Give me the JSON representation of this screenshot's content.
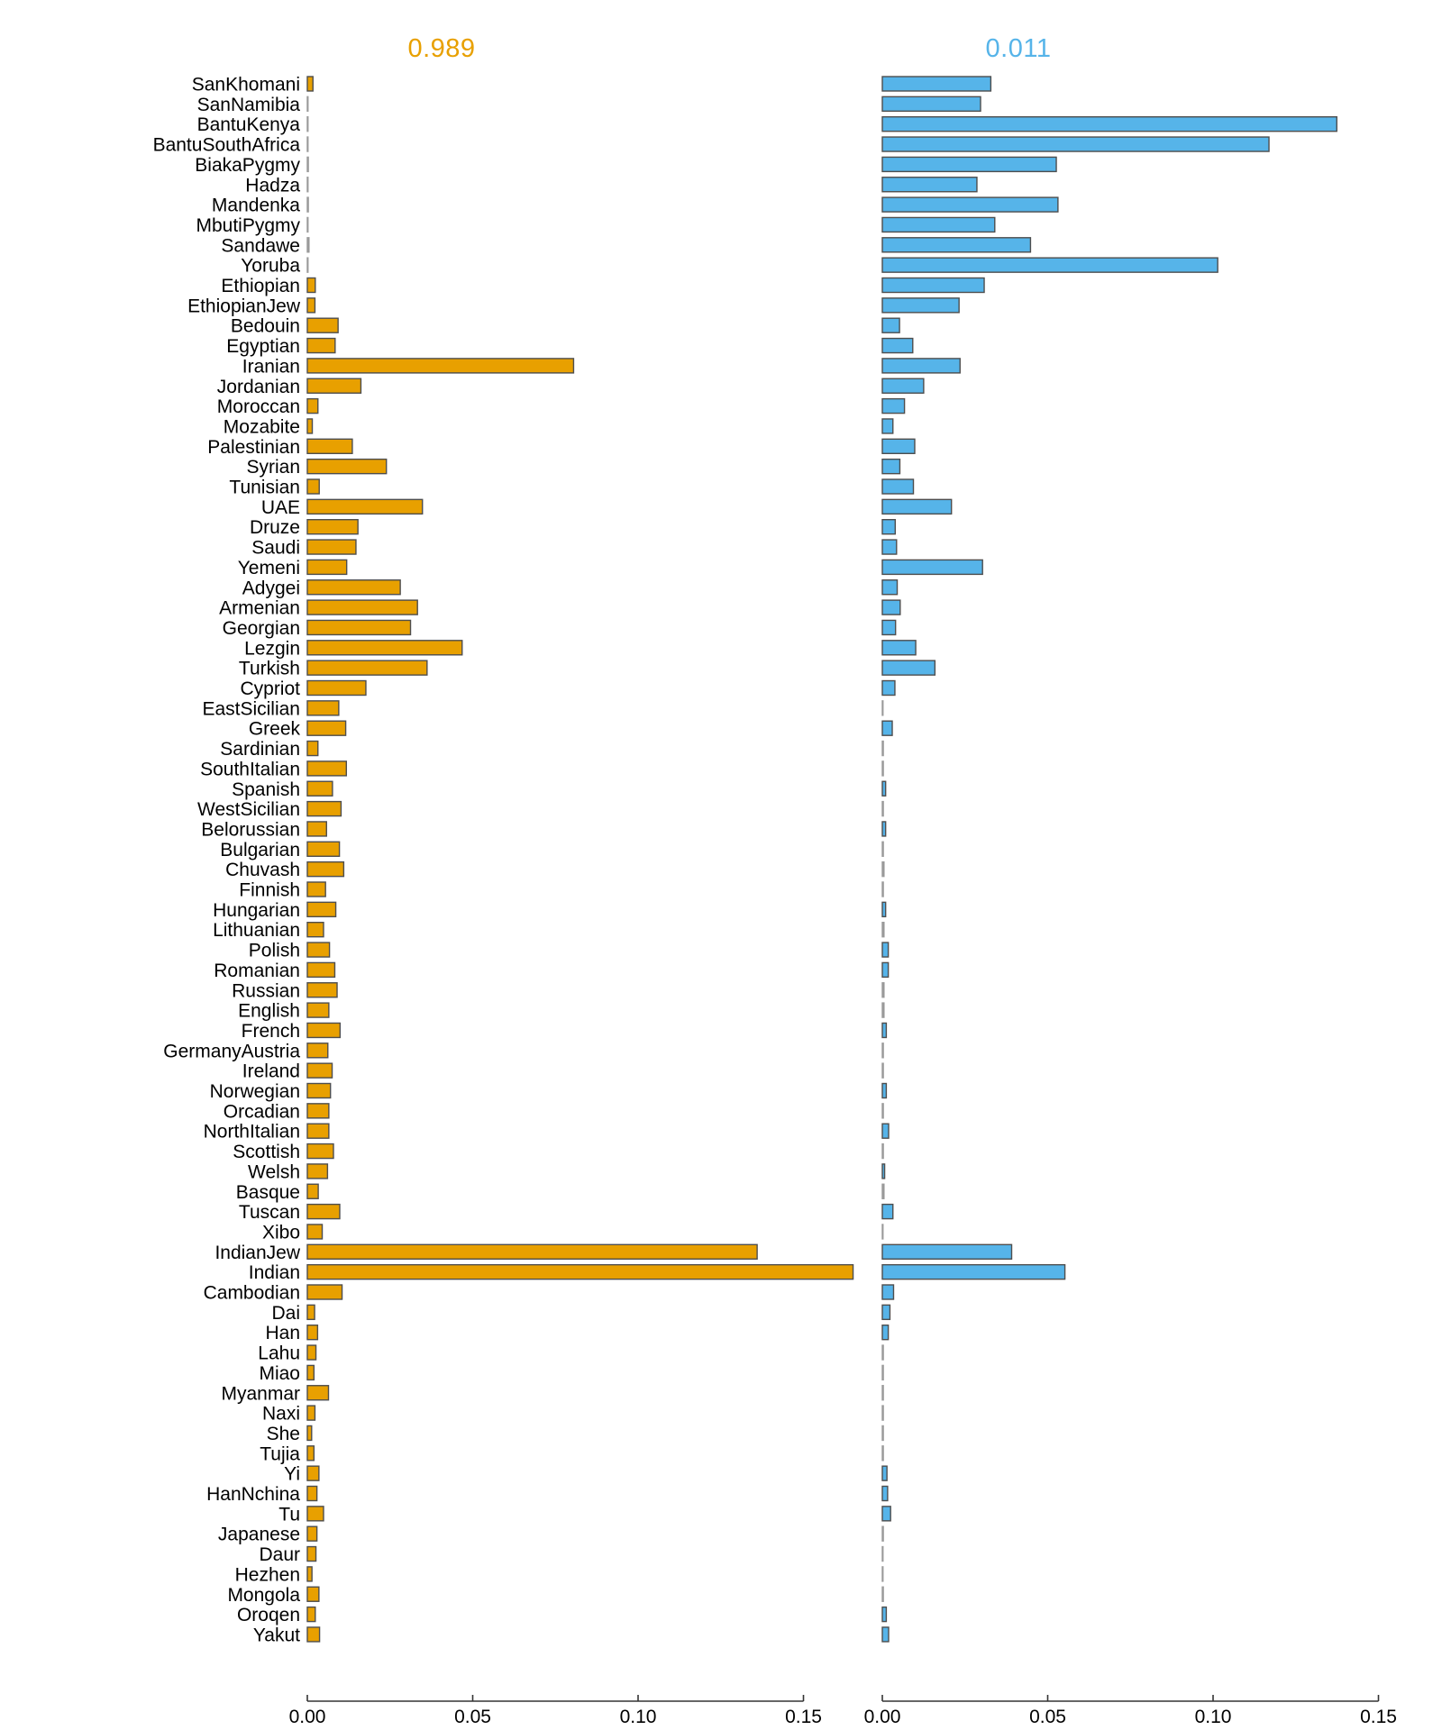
{
  "chart_data": {
    "type": "bar",
    "orientation": "horizontal",
    "title": "",
    "xlabel": "",
    "ylabel": "",
    "grid": false,
    "xlim": [
      0,
      0.155
    ],
    "x_ticks": [
      0,
      0.05,
      0.1,
      0.15
    ],
    "x_tick_labels": [
      "0.00",
      "0.05",
      "0.10",
      "0.15"
    ],
    "panel_titles": [
      "0.989",
      "0.011"
    ],
    "panel_title_colors": [
      "#E8A000",
      "#56B4E9"
    ],
    "categories": [
      "SanKhomani",
      "SanNamibia",
      "BantuKenya",
      "BantuSouthAfrica",
      "BiakaPygmy",
      "Hadza",
      "Mandenka",
      "MbutiPygmy",
      "Sandawe",
      "Yoruba",
      "Ethiopian",
      "EthiopianJew",
      "Bedouin",
      "Egyptian",
      "Iranian",
      "Jordanian",
      "Moroccan",
      "Mozabite",
      "Palestinian",
      "Syrian",
      "Tunisian",
      "UAE",
      "Druze",
      "Saudi",
      "Yemeni",
      "Adygei",
      "Armenian",
      "Georgian",
      "Lezgin",
      "Turkish",
      "Cypriot",
      "EastSicilian",
      "Greek",
      "Sardinian",
      "SouthItalian",
      "Spanish",
      "WestSicilian",
      "Belorussian",
      "Bulgarian",
      "Chuvash",
      "Finnish",
      "Hungarian",
      "Lithuanian",
      "Polish",
      "Romanian",
      "Russian",
      "English",
      "French",
      "GermanyAustria",
      "Ireland",
      "Norwegian",
      "Orcadian",
      "NorthItalian",
      "Scottish",
      "Welsh",
      "Basque",
      "Tuscan",
      "Xibo",
      "IndianJew",
      "Indian",
      "Cambodian",
      "Dai",
      "Han",
      "Lahu",
      "Miao",
      "Myanmar",
      "Naxi",
      "She",
      "Tujia",
      "Yi",
      "HanNchina",
      "Tu",
      "Japanese",
      "Daur",
      "Hezhen",
      "Mongola",
      "Oroqen",
      "Yakut"
    ],
    "series": [
      {
        "name": "0.989",
        "color": "#E8A000",
        "values": [
          0.0017,
          0.0002,
          0.0002,
          0.0002,
          0.0003,
          0.0002,
          0.0003,
          0.0002,
          0.0005,
          0.0002,
          0.0024,
          0.0023,
          0.0093,
          0.0084,
          0.0805,
          0.0162,
          0.0032,
          0.0015,
          0.0136,
          0.0239,
          0.0036,
          0.0348,
          0.0153,
          0.0147,
          0.0119,
          0.0281,
          0.0333,
          0.0312,
          0.0468,
          0.0362,
          0.0177,
          0.0095,
          0.0116,
          0.0032,
          0.0118,
          0.0076,
          0.0102,
          0.0058,
          0.0097,
          0.011,
          0.0055,
          0.0086,
          0.0049,
          0.0067,
          0.0083,
          0.009,
          0.0065,
          0.0099,
          0.0062,
          0.0075,
          0.007,
          0.0065,
          0.0065,
          0.0079,
          0.0061,
          0.0033,
          0.0098,
          0.0045,
          0.136,
          0.165,
          0.0105,
          0.0022,
          0.0031,
          0.0026,
          0.002,
          0.0064,
          0.0023,
          0.0013,
          0.002,
          0.0035,
          0.0029,
          0.0049,
          0.0029,
          0.0026,
          0.0014,
          0.0035,
          0.0024,
          0.0037
        ]
      },
      {
        "name": "0.011",
        "color": "#56B4E9",
        "values": [
          0.0328,
          0.0297,
          0.1374,
          0.1169,
          0.0526,
          0.0286,
          0.0531,
          0.034,
          0.0448,
          0.1014,
          0.0308,
          0.0232,
          0.0052,
          0.0092,
          0.0235,
          0.0125,
          0.0067,
          0.0032,
          0.0098,
          0.0053,
          0.0094,
          0.0209,
          0.0039,
          0.0043,
          0.0303,
          0.0045,
          0.0054,
          0.004,
          0.0101,
          0.0159,
          0.0038,
          0.0002,
          0.003,
          0.0003,
          0.0003,
          0.001,
          0.0003,
          0.001,
          0.0003,
          0.0005,
          0.0003,
          0.001,
          0.0005,
          0.0018,
          0.0018,
          0.0005,
          0.0005,
          0.0012,
          0.0003,
          0.0003,
          0.0012,
          0.0003,
          0.0019,
          0.0003,
          0.0007,
          0.0005,
          0.0032,
          0.0002,
          0.0391,
          0.0552,
          0.0034,
          0.0023,
          0.0018,
          0.0003,
          0.0003,
          0.0003,
          0.0003,
          0.0003,
          0.0003,
          0.0014,
          0.0016,
          0.0025,
          0.0003,
          0.0002,
          0.0002,
          0.0003,
          0.0012,
          0.0019
        ]
      }
    ],
    "legend_position": "none"
  }
}
